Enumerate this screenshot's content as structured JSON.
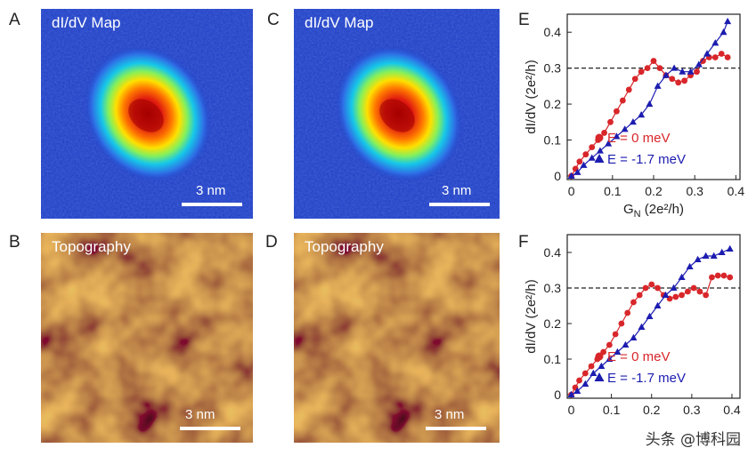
{
  "panels": {
    "A": {
      "letter": "A",
      "title": "dI/dV Map",
      "scale": "3 nm"
    },
    "B": {
      "letter": "B",
      "title": "Topography",
      "scale": "3 nm"
    },
    "C": {
      "letter": "C",
      "title": "dI/dV  Map",
      "scale": "3 nm"
    },
    "D": {
      "letter": "D",
      "title": "Topography",
      "scale": "3 nm"
    }
  },
  "colors": {
    "red_series": "#d8262a",
    "blue_series": "#1c1cb0",
    "map_bg": "#1f3fc4",
    "topo_mid": "#c98a1e"
  },
  "watermark": "头条 @博科园",
  "chart_data": [
    {
      "id": "E",
      "letter": "E",
      "type": "line",
      "xlabel": "G",
      "xlabel_sub": "N",
      "xlabel_tail": " (2e²/h)",
      "ylabel": "dI/dV (2e²/h)",
      "xticks": [
        "0",
        "0.1",
        "0.2",
        "0.3",
        "0.4"
      ],
      "yticks": [
        "0",
        "0.1",
        "0.2",
        "0.3",
        "0.4"
      ],
      "xlim": [
        -0.01,
        0.41
      ],
      "ylim": [
        -0.01,
        0.45
      ],
      "hline": 0.3,
      "series": [
        {
          "name": "E =  0 meV",
          "color": "#d8262a",
          "marker": "circle",
          "x": [
            0,
            0.01,
            0.02,
            0.035,
            0.05,
            0.065,
            0.08,
            0.095,
            0.11,
            0.125,
            0.14,
            0.155,
            0.17,
            0.185,
            0.2,
            0.215,
            0.23,
            0.245,
            0.26,
            0.275,
            0.29,
            0.305,
            0.32,
            0.335,
            0.35,
            0.365,
            0.38
          ],
          "y": [
            0,
            0.02,
            0.04,
            0.06,
            0.08,
            0.1,
            0.12,
            0.15,
            0.18,
            0.21,
            0.24,
            0.27,
            0.29,
            0.3,
            0.32,
            0.3,
            0.28,
            0.27,
            0.26,
            0.265,
            0.28,
            0.29,
            0.32,
            0.33,
            0.33,
            0.34,
            0.33
          ]
        },
        {
          "name": "E = -1.7 meV",
          "color": "#1c1cb0",
          "marker": "triangle",
          "x": [
            0,
            0.015,
            0.03,
            0.05,
            0.07,
            0.09,
            0.11,
            0.13,
            0.15,
            0.17,
            0.19,
            0.21,
            0.23,
            0.25,
            0.27,
            0.29,
            0.31,
            0.33,
            0.35,
            0.37,
            0.38
          ],
          "y": [
            0,
            0.01,
            0.03,
            0.05,
            0.07,
            0.09,
            0.11,
            0.13,
            0.15,
            0.17,
            0.2,
            0.25,
            0.28,
            0.3,
            0.29,
            0.29,
            0.31,
            0.34,
            0.37,
            0.4,
            0.43
          ]
        }
      ]
    },
    {
      "id": "F",
      "letter": "F",
      "type": "line",
      "xlabel": "",
      "ylabel": "dI/dV (2e²/h)",
      "xticks": [
        "0",
        "0.1",
        "0.2",
        "0.3",
        "0.4"
      ],
      "yticks": [
        "0",
        "0.1",
        "0.2",
        "0.3",
        "0.4"
      ],
      "xlim": [
        -0.01,
        0.42
      ],
      "ylim": [
        -0.01,
        0.45
      ],
      "hline": 0.3,
      "series": [
        {
          "name": "E =  0 meV",
          "color": "#d8262a",
          "marker": "circle",
          "x": [
            0,
            0.01,
            0.02,
            0.035,
            0.05,
            0.065,
            0.08,
            0.095,
            0.11,
            0.125,
            0.14,
            0.155,
            0.17,
            0.185,
            0.2,
            0.215,
            0.23,
            0.245,
            0.26,
            0.275,
            0.29,
            0.305,
            0.32,
            0.335,
            0.35,
            0.365,
            0.38,
            0.395
          ],
          "y": [
            0,
            0.02,
            0.04,
            0.06,
            0.08,
            0.1,
            0.12,
            0.14,
            0.17,
            0.2,
            0.23,
            0.26,
            0.28,
            0.3,
            0.31,
            0.3,
            0.28,
            0.27,
            0.275,
            0.28,
            0.29,
            0.3,
            0.29,
            0.28,
            0.33,
            0.335,
            0.335,
            0.33
          ]
        },
        {
          "name": "E = -1.7 meV",
          "color": "#1c1cb0",
          "marker": "triangle",
          "x": [
            0,
            0.015,
            0.035,
            0.055,
            0.075,
            0.095,
            0.115,
            0.135,
            0.155,
            0.175,
            0.195,
            0.215,
            0.235,
            0.255,
            0.275,
            0.295,
            0.315,
            0.335,
            0.355,
            0.375,
            0.395
          ],
          "y": [
            0,
            0.01,
            0.03,
            0.06,
            0.08,
            0.1,
            0.12,
            0.14,
            0.16,
            0.19,
            0.22,
            0.25,
            0.28,
            0.3,
            0.33,
            0.36,
            0.38,
            0.39,
            0.39,
            0.4,
            0.41
          ]
        }
      ]
    }
  ]
}
